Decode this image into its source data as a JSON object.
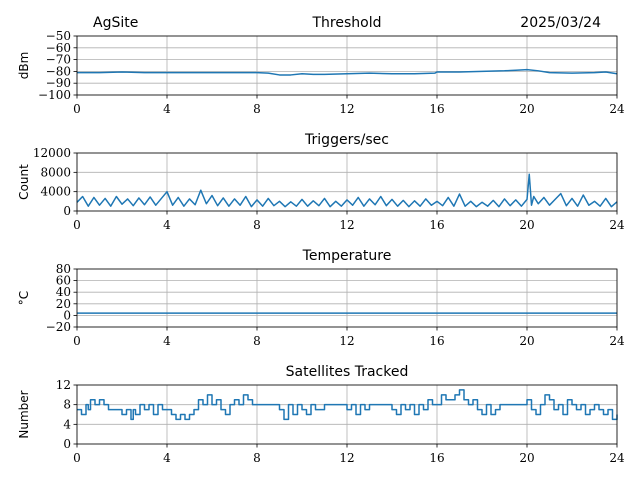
{
  "header": {
    "site": "AgSite",
    "date": "2025/03/24"
  },
  "colors": {
    "series": "#1f77b4",
    "grid": "#b0b0b0"
  },
  "chart_data": [
    {
      "type": "line",
      "title": "Threshold",
      "ylabel": "dBm",
      "xlim": [
        0,
        24
      ],
      "ylim": [
        -100,
        -50
      ],
      "xticks": [
        0,
        4,
        8,
        12,
        16,
        20,
        24
      ],
      "yticks": [
        -100,
        -90,
        -80,
        -70,
        -60,
        -50
      ],
      "ytick_labels": [
        "−100",
        "−90",
        "−80",
        "−70",
        "−60",
        "−50"
      ],
      "grid": true,
      "series": [
        {
          "x": [
            0,
            1,
            2,
            3,
            4,
            5,
            6,
            7,
            8,
            8.5,
            9,
            9.5,
            10,
            10.5,
            11,
            12,
            13,
            14,
            15,
            15.9,
            16,
            17,
            18,
            19,
            19.5,
            20,
            20.5,
            21,
            22,
            23,
            23.5,
            24
          ],
          "y": [
            -81,
            -81,
            -80.5,
            -81,
            -81,
            -81,
            -81,
            -81,
            -81,
            -81.5,
            -83,
            -83,
            -82,
            -82.5,
            -82.5,
            -82,
            -81.5,
            -82,
            -82,
            -81.5,
            -80.5,
            -80.5,
            -80,
            -79.5,
            -79,
            -78.5,
            -79.5,
            -81,
            -81.5,
            -81,
            -80.5,
            -82
          ]
        }
      ]
    },
    {
      "type": "line",
      "title": "Triggers/sec",
      "ylabel": "Count",
      "xlim": [
        0,
        24
      ],
      "ylim": [
        0,
        12000
      ],
      "xticks": [
        0,
        4,
        8,
        12,
        16,
        20,
        24
      ],
      "yticks": [
        0,
        4000,
        8000,
        12000
      ],
      "ytick_labels": [
        "0",
        "4000",
        "8000",
        "12000"
      ],
      "grid": true,
      "series": [
        {
          "x": [
            0,
            0.25,
            0.5,
            0.75,
            1,
            1.25,
            1.5,
            1.75,
            2,
            2.25,
            2.5,
            2.75,
            3,
            3.25,
            3.5,
            3.75,
            4,
            4.25,
            4.5,
            4.75,
            5,
            5.25,
            5.5,
            5.75,
            6,
            6.25,
            6.5,
            6.75,
            7,
            7.25,
            7.5,
            7.75,
            8,
            8.25,
            8.5,
            8.75,
            9,
            9.25,
            9.5,
            9.75,
            10,
            10.25,
            10.5,
            10.75,
            11,
            11.25,
            11.5,
            11.75,
            12,
            12.25,
            12.5,
            12.75,
            13,
            13.25,
            13.5,
            13.75,
            14,
            14.25,
            14.5,
            14.75,
            15,
            15.25,
            15.5,
            15.75,
            16,
            16.25,
            16.5,
            16.75,
            17,
            17.25,
            17.5,
            17.75,
            18,
            18.25,
            18.5,
            18.75,
            19,
            19.25,
            19.5,
            19.75,
            20,
            20.1,
            20.2,
            20.3,
            20.5,
            20.75,
            21,
            21.25,
            21.5,
            21.75,
            22,
            22.25,
            22.5,
            22.75,
            23,
            23.25,
            23.5,
            23.75,
            24
          ],
          "y": [
            1800,
            3000,
            1000,
            2800,
            1200,
            2600,
            1000,
            3000,
            1400,
            2500,
            1100,
            2700,
            1300,
            2900,
            1200,
            2600,
            4000,
            1200,
            2800,
            1000,
            2500,
            1300,
            4300,
            1500,
            3200,
            1100,
            2700,
            1000,
            2500,
            1200,
            3000,
            900,
            2300,
            1000,
            2600,
            1100,
            2000,
            900,
            1900,
            1000,
            2400,
            1000,
            2100,
            1100,
            2600,
            900,
            2000,
            1000,
            2300,
            1200,
            2800,
            1000,
            2500,
            1300,
            3000,
            1100,
            2400,
            1000,
            2200,
            900,
            2100,
            1000,
            2500,
            1200,
            2000,
            1100,
            2800,
            1000,
            3500,
            1000,
            2000,
            900,
            1800,
            1000,
            2200,
            900,
            2500,
            1100,
            2300,
            1000,
            2400,
            7600,
            1200,
            3000,
            1500,
            2800,
            1200,
            2400,
            3600,
            1100,
            2600,
            1000,
            3300,
            1200,
            2000,
            1000,
            2600,
            900,
            1900
          ]
        }
      ]
    },
    {
      "type": "line",
      "title": "Temperature",
      "ylabel": "°C",
      "xlim": [
        0,
        24
      ],
      "ylim": [
        -20,
        80
      ],
      "xticks": [
        0,
        4,
        8,
        12,
        16,
        20,
        24
      ],
      "yticks": [
        -20,
        0,
        20,
        40,
        60,
        80
      ],
      "ytick_labels": [
        "−20",
        "0",
        "20",
        "40",
        "60",
        "80"
      ],
      "grid": true,
      "series": [
        {
          "x": [
            0,
            24
          ],
          "y": [
            4,
            4
          ]
        }
      ]
    },
    {
      "type": "line",
      "title": "Satellites Tracked",
      "ylabel": "Number",
      "xlim": [
        0,
        24
      ],
      "ylim": [
        0,
        12
      ],
      "xticks": [
        0,
        4,
        8,
        12,
        16,
        20,
        24
      ],
      "yticks": [
        0,
        4,
        8,
        12
      ],
      "ytick_labels": [
        "0",
        "4",
        "8",
        "12"
      ],
      "grid": true,
      "series": [
        {
          "step": true,
          "x": [
            0,
            0.2,
            0.4,
            0.5,
            0.6,
            0.8,
            1.0,
            1.2,
            1.4,
            1.6,
            1.8,
            2.0,
            2.2,
            2.4,
            2.5,
            2.6,
            2.8,
            3.0,
            3.2,
            3.4,
            3.6,
            3.8,
            4.0,
            4.2,
            4.4,
            4.6,
            4.8,
            5.0,
            5.2,
            5.4,
            5.6,
            5.8,
            6.0,
            6.2,
            6.4,
            6.6,
            6.8,
            7.0,
            7.2,
            7.4,
            7.6,
            7.8,
            8.0,
            8.4,
            8.8,
            9.0,
            9.2,
            9.4,
            9.6,
            9.8,
            10.0,
            10.2,
            10.4,
            10.6,
            10.8,
            11.0,
            11.4,
            11.8,
            12.0,
            12.2,
            12.4,
            12.6,
            12.8,
            13.0,
            13.4,
            13.8,
            14.0,
            14.2,
            14.4,
            14.6,
            14.8,
            15.0,
            15.2,
            15.4,
            15.6,
            15.8,
            16.0,
            16.2,
            16.4,
            16.6,
            16.8,
            17.0,
            17.2,
            17.4,
            17.6,
            17.8,
            18.0,
            18.2,
            18.4,
            18.6,
            18.8,
            19.0,
            19.4,
            19.8,
            20.0,
            20.2,
            20.4,
            20.6,
            20.8,
            21.0,
            21.2,
            21.4,
            21.6,
            21.8,
            22.0,
            22.2,
            22.4,
            22.6,
            22.8,
            23.0,
            23.2,
            23.4,
            23.6,
            23.8,
            24
          ],
          "y": [
            7,
            6,
            8,
            7,
            9,
            8,
            9,
            8,
            7,
            7,
            7,
            6,
            7,
            5,
            7,
            6,
            8,
            7,
            8,
            6,
            8,
            7,
            7,
            6,
            5,
            6,
            5,
            6,
            7,
            9,
            8,
            10,
            8,
            9,
            7,
            6,
            8,
            9,
            8,
            10,
            9,
            8,
            8,
            8,
            8,
            7,
            5,
            8,
            6,
            8,
            7,
            6,
            8,
            7,
            7,
            8,
            8,
            8,
            7,
            8,
            6,
            8,
            7,
            8,
            8,
            8,
            7,
            6,
            8,
            7,
            8,
            6,
            8,
            7,
            9,
            8,
            8,
            10,
            9,
            9,
            10,
            11,
            9,
            8,
            9,
            7,
            6,
            8,
            6,
            7,
            8,
            8,
            8,
            8,
            9,
            7,
            6,
            8,
            10,
            9,
            7,
            8,
            6,
            9,
            8,
            7,
            8,
            6,
            7,
            8,
            7,
            6,
            7,
            5,
            6
          ]
        }
      ]
    }
  ]
}
